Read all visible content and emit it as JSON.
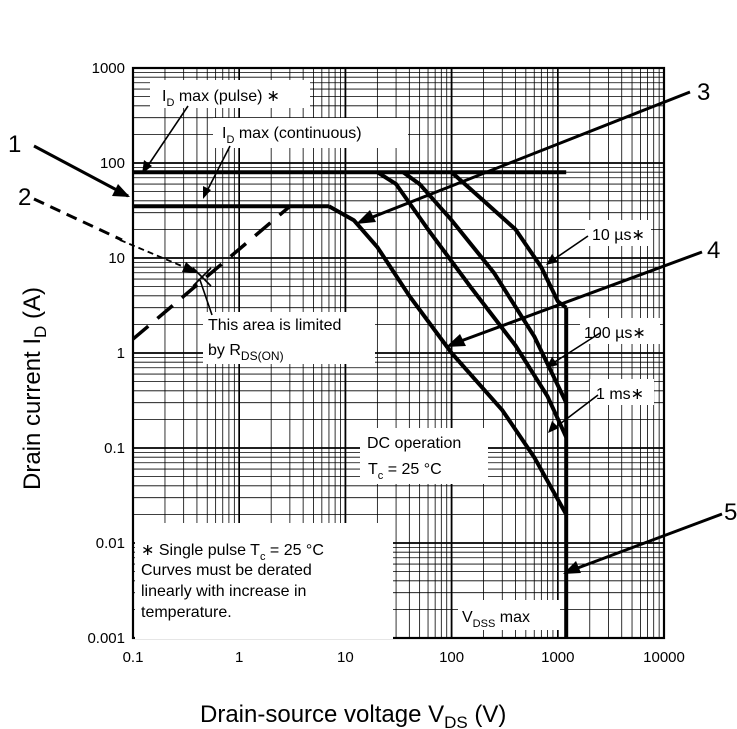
{
  "chart_data": {
    "type": "line",
    "xscale": "log",
    "yscale": "log",
    "xlim": [
      0.1,
      10000
    ],
    "ylim": [
      0.001,
      1000
    ],
    "grid": true,
    "xlabel": {
      "main": "Drain-source voltage  V",
      "sub": "DS",
      "unit": "  (V)"
    },
    "ylabel": {
      "main": "Drain current  I",
      "sub": "D",
      "unit": "  (A)"
    },
    "x_ticks": [
      "0.1",
      "1",
      "10",
      "100",
      "1000",
      "10000"
    ],
    "y_ticks": [
      "0.001",
      "0.01",
      "0.1",
      "1",
      "10",
      "100",
      "1000"
    ],
    "series": [
      {
        "key": "pulse_limit",
        "points": [
          [
            0.1,
            80
          ],
          [
            1200,
            80
          ]
        ]
      },
      {
        "key": "continuous_limit",
        "points": [
          [
            0.1,
            35
          ],
          [
            7,
            35
          ]
        ]
      },
      {
        "key": "dc",
        "points": [
          [
            7,
            35
          ],
          [
            12,
            25
          ],
          [
            20,
            13
          ],
          [
            40,
            4
          ],
          [
            100,
            1
          ],
          [
            300,
            0.25
          ],
          [
            600,
            0.08
          ],
          [
            1200,
            0.02
          ]
        ]
      },
      {
        "key": "1ms",
        "points": [
          [
            20,
            80
          ],
          [
            30,
            60
          ],
          [
            60,
            20
          ],
          [
            150,
            5
          ],
          [
            400,
            1.2
          ],
          [
            800,
            0.35
          ],
          [
            1200,
            0.13
          ]
        ]
      },
      {
        "key": "100us",
        "points": [
          [
            35,
            80
          ],
          [
            50,
            60
          ],
          [
            100,
            25
          ],
          [
            250,
            7
          ],
          [
            600,
            1.5
          ],
          [
            1200,
            0.3
          ]
        ]
      },
      {
        "key": "10us",
        "points": [
          [
            100,
            80
          ],
          [
            200,
            40
          ],
          [
            400,
            20
          ],
          [
            700,
            8
          ],
          [
            1000,
            3.5
          ],
          [
            1200,
            3
          ]
        ]
      },
      {
        "key": "vdss",
        "points": [
          [
            1200,
            3
          ],
          [
            1200,
            0.001
          ]
        ]
      },
      {
        "key": "rds_on",
        "dashed": true,
        "points": [
          [
            0.1,
            1.4
          ],
          [
            3,
            35
          ]
        ]
      }
    ],
    "annotations": {
      "id_pulse": {
        "main": "I",
        "sub": "D",
        "rest": " max (pulse)",
        "star": "∗"
      },
      "id_cont": {
        "main": "I",
        "sub": "D",
        "rest": " max (continuous)"
      },
      "rds1": "This area is limited",
      "rds2_main": "by R",
      "rds2_sub": "DS(ON)",
      "t10us": "10 µs∗",
      "t100us": "100 µs∗",
      "t1ms": "1 ms∗",
      "dc1": "DC operation",
      "dc2_main": "T",
      "dc2_sub": "c",
      "dc2_rest": " = 25 °C",
      "note1_pre": "∗ Single pulse T",
      "note1_sub": "c",
      "note1_rest": " = 25 °C",
      "note2": "Curves must be derated",
      "note3": "linearly with increase in",
      "note4": "temperature.",
      "vdss_main": "V",
      "vdss_sub": "DSS",
      "vdss_rest": " max",
      "n1": "1",
      "n2": "2",
      "n3": "3",
      "n4": "4",
      "n5": "5"
    }
  }
}
